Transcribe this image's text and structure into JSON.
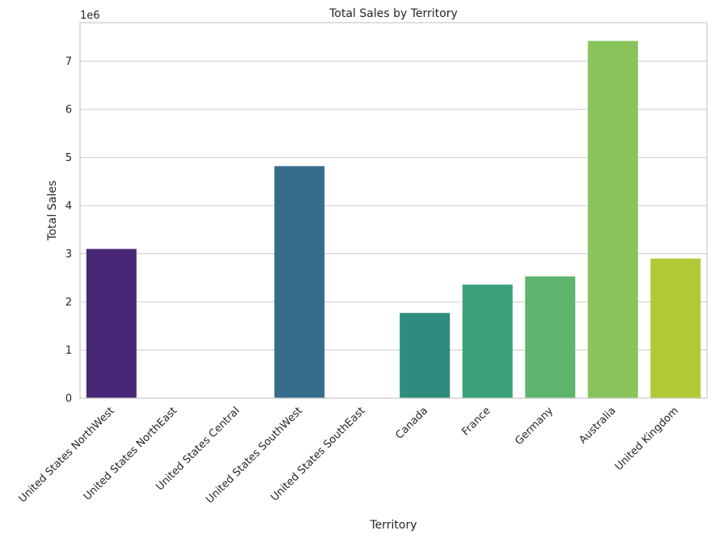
{
  "chart_data": {
    "type": "bar",
    "title": "Total Sales by Territory",
    "xlabel": "Territory",
    "ylabel": "Total Sales",
    "y_offset_label": "1e6",
    "categories": [
      "United States NorthWest",
      "United States NorthEast",
      "United States Central",
      "United States SouthWest",
      "United States SouthEast",
      "Canada",
      "France",
      "Germany",
      "Australia",
      "United Kingdom"
    ],
    "values": [
      3.1,
      0,
      0,
      4.82,
      0,
      1.77,
      2.36,
      2.53,
      7.42,
      2.9
    ],
    "value_multiplier": 1000000,
    "colors": [
      "#482776",
      "#433e84",
      "#38588c",
      "#366d8d",
      "#2c818c",
      "#2e8b7d",
      "#3aa178",
      "#5db56e",
      "#88c45a",
      "#b2c837"
    ],
    "ylim": [
      0,
      7.8
    ],
    "yticks": [
      0,
      1,
      2,
      3,
      4,
      5,
      6,
      7
    ],
    "grid": "horizontal",
    "legend": "none"
  }
}
